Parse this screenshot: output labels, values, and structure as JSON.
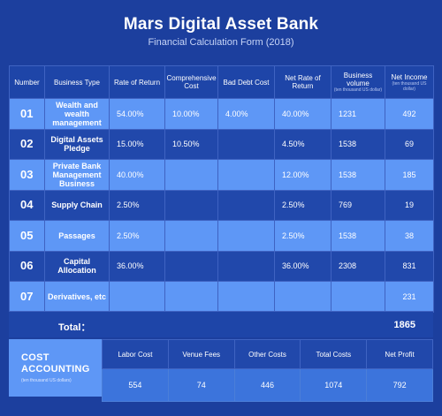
{
  "header": {
    "title": "Mars Digital Asset Bank",
    "subtitle": "Financial Calculation Form (2018)"
  },
  "columns": {
    "number": "Number",
    "business_type": "Business Type",
    "rate_of_return": "Rate of Return",
    "comprehensive_cost": "Comprehensive Cost",
    "bad_debt_cost": "Bad Debt Cost",
    "net_rate_of_return": "Net Rate of Return",
    "business_volume": "Business volume",
    "business_volume_unit": "(ten thousand US dollar)",
    "net_income": "Net Income",
    "net_income_unit": "(ten thousand US dollar)"
  },
  "rows": [
    {
      "number": "01",
      "type": "Wealth and wealth management",
      "rate": "54.00%",
      "comp_cost": "10.00%",
      "bad_debt": "4.00%",
      "net_rate": "40.00%",
      "volume": "1231",
      "income": "492"
    },
    {
      "number": "02",
      "type": "Digital Assets Pledge",
      "rate": "15.00%",
      "comp_cost": "10.50%",
      "bad_debt": "",
      "net_rate": "4.50%",
      "volume": "1538",
      "income": "69"
    },
    {
      "number": "03",
      "type": "Private Bank Management Business",
      "rate": "40.00%",
      "comp_cost": "",
      "bad_debt": "",
      "net_rate": "12.00%",
      "volume": "1538",
      "income": "185"
    },
    {
      "number": "04",
      "type": "Supply Chain",
      "rate": "2.50%",
      "comp_cost": "",
      "bad_debt": "",
      "net_rate": "2.50%",
      "volume": "769",
      "income": "19"
    },
    {
      "number": "05",
      "type": "Passages",
      "rate": "2.50%",
      "comp_cost": "",
      "bad_debt": "",
      "net_rate": "2.50%",
      "volume": "1538",
      "income": "38"
    },
    {
      "number": "06",
      "type": "Capital Allocation",
      "rate": "36.00%",
      "comp_cost": "",
      "bad_debt": "",
      "net_rate": "36.00%",
      "volume": "2308",
      "income": "831"
    },
    {
      "number": "07",
      "type": "Derivatives, etc",
      "rate": "",
      "comp_cost": "",
      "bad_debt": "",
      "net_rate": "",
      "volume": "",
      "income": "231"
    }
  ],
  "total": {
    "label": "Total：",
    "value": "1865"
  },
  "cost_accounting": {
    "title_line1": "COST",
    "title_line2": "ACCOUNTING",
    "unit": "(ten thousand US dollars)",
    "headers": [
      "Labor Cost",
      "Venue Fees",
      "Other Costs",
      "Total Costs",
      "Net Profit"
    ],
    "values": [
      "554",
      "74",
      "446",
      "1074",
      "792"
    ]
  },
  "colors": {
    "background": "#1c3f9e",
    "row_light": "#5e97f6",
    "row_dark": "#2148ab"
  }
}
